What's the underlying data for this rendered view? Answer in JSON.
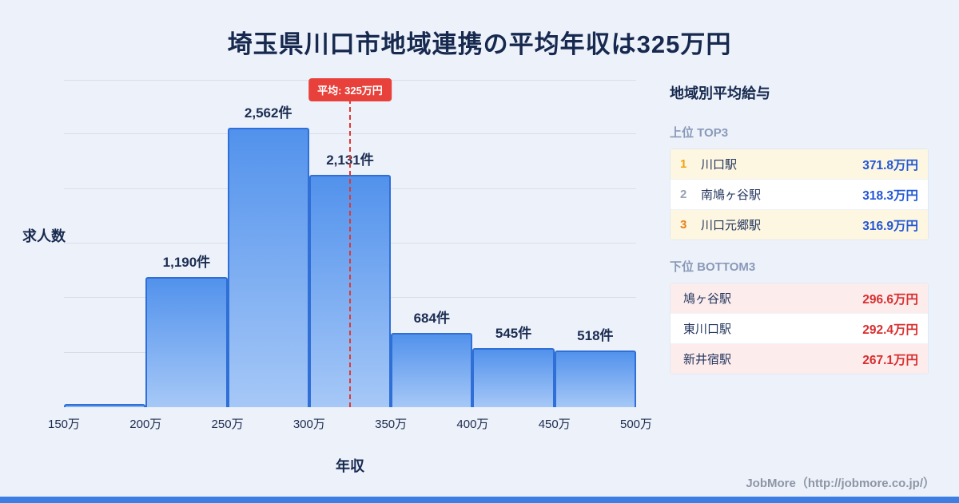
{
  "title": "埼玉県川口市地域連携の平均年収は325万円",
  "chart_data": {
    "type": "bar",
    "bins": [
      "150万",
      "200万",
      "250万",
      "300万",
      "350万",
      "400万",
      "450万",
      "500万"
    ],
    "values": [
      30,
      1190,
      2562,
      2131,
      684,
      545,
      518
    ],
    "bar_labels": [
      "",
      "1,190件",
      "2,562件",
      "2,131件",
      "684件",
      "545件",
      "518件"
    ],
    "title": "埼玉県川口市地域連携の平均年収は325万円",
    "xlabel": "年収",
    "ylabel": "求人数",
    "ylim": [
      0,
      3000
    ],
    "grid_step": 500,
    "grid": true,
    "x_range": [
      150,
      500
    ],
    "average_line": {
      "x_value": 325,
      "label": "平均: 325万円"
    }
  },
  "sidebar": {
    "title": "地域別平均給与",
    "top3": {
      "heading": "上位 TOP3",
      "rows": [
        {
          "rank": "1",
          "name": "川口駅",
          "value": "371.8万円"
        },
        {
          "rank": "2",
          "name": "南鳩ヶ谷駅",
          "value": "318.3万円"
        },
        {
          "rank": "3",
          "name": "川口元郷駅",
          "value": "316.9万円"
        }
      ]
    },
    "bottom3": {
      "heading": "下位 BOTTOM3",
      "rows": [
        {
          "name": "鳩ヶ谷駅",
          "value": "296.6万円"
        },
        {
          "name": "東川口駅",
          "value": "292.4万円"
        },
        {
          "name": "新井宿駅",
          "value": "267.1万円"
        }
      ]
    }
  },
  "footer": {
    "credit": "JobMore（http://jobmore.co.jp/）"
  },
  "colors": {
    "background": "#edf2fa",
    "title_navy": "#17294f",
    "bar_fill_top": "#5292ec",
    "bar_fill_bottom": "#a6c8f7",
    "bar_border": "#2f6fd6",
    "average_red": "#e8403a",
    "top_value_blue": "#2257d6",
    "bottom_value_red": "#d82f2f",
    "rank1_gold": "#f2a40c",
    "rank3_orange": "#e4821e",
    "footer_strip_blue": "#3c7ee1"
  }
}
